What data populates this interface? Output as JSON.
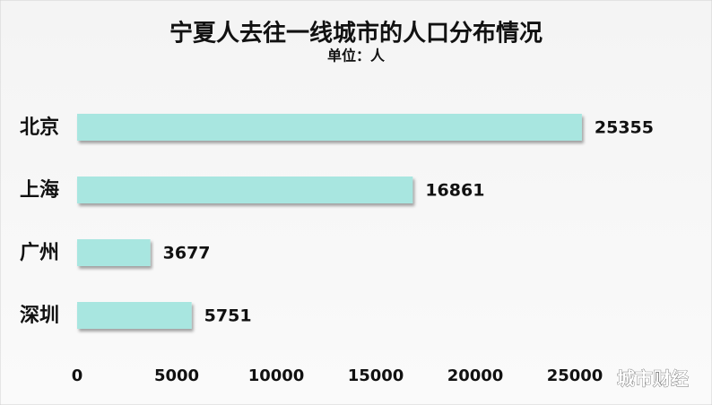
{
  "chart_data": {
    "type": "bar",
    "orientation": "horizontal",
    "title": "宁夏人去往一线城市的人口分布情况",
    "subtitle": "单位：人",
    "categories": [
      "北京",
      "上海",
      "广州",
      "深圳"
    ],
    "values": [
      25355,
      16861,
      3677,
      5751
    ],
    "color": "#a8e6e0",
    "xlim": [
      0,
      30000
    ],
    "xticks": [
      0,
      5000,
      10000,
      15000,
      20000,
      25000
    ],
    "grid": false
  },
  "watermark": "城市财经"
}
